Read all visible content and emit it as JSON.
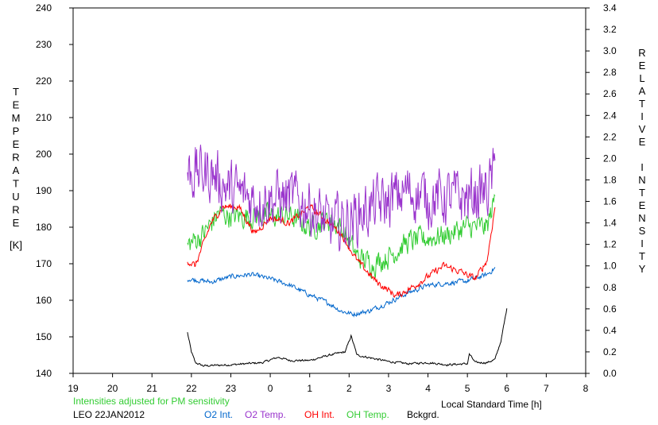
{
  "chart_data": {
    "type": "line",
    "left_axis": {
      "label_letters": [
        "T",
        "E",
        "M",
        "P",
        "E",
        "R",
        "A",
        "T",
        "U",
        "R",
        "E"
      ],
      "unit": "[K]",
      "ylim": [
        140,
        240
      ],
      "ticks": [
        "140",
        "150",
        "160",
        "170",
        "180",
        "190",
        "200",
        "210",
        "220",
        "230",
        "240"
      ]
    },
    "right_axis": {
      "label_letters": [
        "R",
        "E",
        "L",
        "A",
        "T",
        "I",
        "V",
        "E",
        "",
        "I",
        "N",
        "T",
        "E",
        "N",
        "S",
        "I",
        "T",
        "Y"
      ],
      "ylim": [
        0.0,
        3.4
      ],
      "ticks": [
        "0.0",
        "0.2",
        "0.4",
        "0.6",
        "0.8",
        "1.0",
        "1.2",
        "1.4",
        "1.6",
        "1.8",
        "2.0",
        "2.2",
        "2.4",
        "2.6",
        "2.8",
        "3.0",
        "3.2",
        "3.4"
      ]
    },
    "x_axis": {
      "label": "Local Standard Time [h]",
      "xlim": [
        19,
        32
      ],
      "ticks": [
        "19",
        "20",
        "21",
        "22",
        "23",
        "0",
        "1",
        "2",
        "3",
        "4",
        "5",
        "6",
        "7",
        "8"
      ]
    },
    "note": "Intensities adjusted for PM sensitivity",
    "station": "LEO 22JAN2012",
    "series": [
      {
        "name": "O2 Int.",
        "color": "#0066cc",
        "axis": "right",
        "x_range": [
          21.9,
          29.7
        ],
        "noise": 0.035,
        "knots": [
          [
            21.9,
            0.88
          ],
          [
            22.5,
            0.85
          ],
          [
            23.0,
            0.9
          ],
          [
            23.5,
            0.92
          ],
          [
            24.0,
            0.88
          ],
          [
            24.5,
            0.82
          ],
          [
            25.0,
            0.73
          ],
          [
            25.5,
            0.65
          ],
          [
            25.8,
            0.58
          ],
          [
            26.1,
            0.55
          ],
          [
            26.5,
            0.58
          ],
          [
            27.0,
            0.66
          ],
          [
            27.5,
            0.75
          ],
          [
            28.0,
            0.82
          ],
          [
            28.5,
            0.84
          ],
          [
            29.0,
            0.86
          ],
          [
            29.5,
            0.92
          ],
          [
            29.7,
            0.98
          ]
        ]
      },
      {
        "name": "O2 Temp.",
        "color": "#9933cc",
        "axis": "left",
        "x_range": [
          21.9,
          29.7
        ],
        "noise": 12,
        "knots": [
          [
            21.9,
            195
          ],
          [
            22.5,
            195
          ],
          [
            23.0,
            190
          ],
          [
            23.5,
            188
          ],
          [
            24.0,
            188
          ],
          [
            24.5,
            188
          ],
          [
            25.0,
            186
          ],
          [
            25.5,
            180
          ],
          [
            26.0,
            182
          ],
          [
            26.5,
            185
          ],
          [
            27.0,
            187
          ],
          [
            27.5,
            190
          ],
          [
            28.0,
            188
          ],
          [
            28.5,
            188
          ],
          [
            29.0,
            188
          ],
          [
            29.5,
            190
          ],
          [
            29.7,
            195
          ]
        ]
      },
      {
        "name": "OH Int.",
        "color": "#ff0000",
        "axis": "right",
        "x_range": [
          21.9,
          29.7
        ],
        "noise": 0.05,
        "knots": [
          [
            21.9,
            1.05
          ],
          [
            22.1,
            1.0
          ],
          [
            22.5,
            1.4
          ],
          [
            22.8,
            1.55
          ],
          [
            23.2,
            1.55
          ],
          [
            23.6,
            1.3
          ],
          [
            24.0,
            1.45
          ],
          [
            24.5,
            1.4
          ],
          [
            25.0,
            1.55
          ],
          [
            25.5,
            1.4
          ],
          [
            25.8,
            1.3
          ],
          [
            26.2,
            1.05
          ],
          [
            26.7,
            0.85
          ],
          [
            27.2,
            0.72
          ],
          [
            27.6,
            0.8
          ],
          [
            28.0,
            0.9
          ],
          [
            28.4,
            1.0
          ],
          [
            28.8,
            0.95
          ],
          [
            29.2,
            0.88
          ],
          [
            29.5,
            1.05
          ],
          [
            29.7,
            1.55
          ]
        ]
      },
      {
        "name": "OH Temp.",
        "color": "#33cc33",
        "axis": "left",
        "x_range": [
          21.9,
          29.7
        ],
        "noise": 5,
        "knots": [
          [
            21.9,
            175
          ],
          [
            22.3,
            178
          ],
          [
            22.7,
            184
          ],
          [
            23.0,
            183
          ],
          [
            23.5,
            183
          ],
          [
            24.0,
            183
          ],
          [
            24.5,
            183
          ],
          [
            25.0,
            180
          ],
          [
            25.5,
            182
          ],
          [
            25.8,
            180
          ],
          [
            26.2,
            172
          ],
          [
            26.6,
            170
          ],
          [
            27.0,
            172
          ],
          [
            27.5,
            176
          ],
          [
            28.0,
            177
          ],
          [
            28.5,
            178
          ],
          [
            29.0,
            180
          ],
          [
            29.5,
            180
          ],
          [
            29.7,
            188
          ]
        ]
      },
      {
        "name": "Bckgrd.",
        "color": "#000000",
        "axis": "right",
        "x_range": [
          21.9,
          30.0
        ],
        "noise": 0.015,
        "knots": [
          [
            21.9,
            0.38
          ],
          [
            22.0,
            0.2
          ],
          [
            22.1,
            0.1
          ],
          [
            22.3,
            0.07
          ],
          [
            23.0,
            0.08
          ],
          [
            23.8,
            0.1
          ],
          [
            24.2,
            0.15
          ],
          [
            24.5,
            0.12
          ],
          [
            25.0,
            0.12
          ],
          [
            25.5,
            0.17
          ],
          [
            25.9,
            0.2
          ],
          [
            26.05,
            0.35
          ],
          [
            26.2,
            0.17
          ],
          [
            26.6,
            0.14
          ],
          [
            27.0,
            0.11
          ],
          [
            27.5,
            0.09
          ],
          [
            28.0,
            0.1
          ],
          [
            28.5,
            0.08
          ],
          [
            29.0,
            0.09
          ],
          [
            29.05,
            0.18
          ],
          [
            29.2,
            0.1
          ],
          [
            29.5,
            0.1
          ],
          [
            29.7,
            0.13
          ],
          [
            29.85,
            0.3
          ],
          [
            29.95,
            0.5
          ],
          [
            30.0,
            0.6
          ]
        ]
      }
    ]
  }
}
